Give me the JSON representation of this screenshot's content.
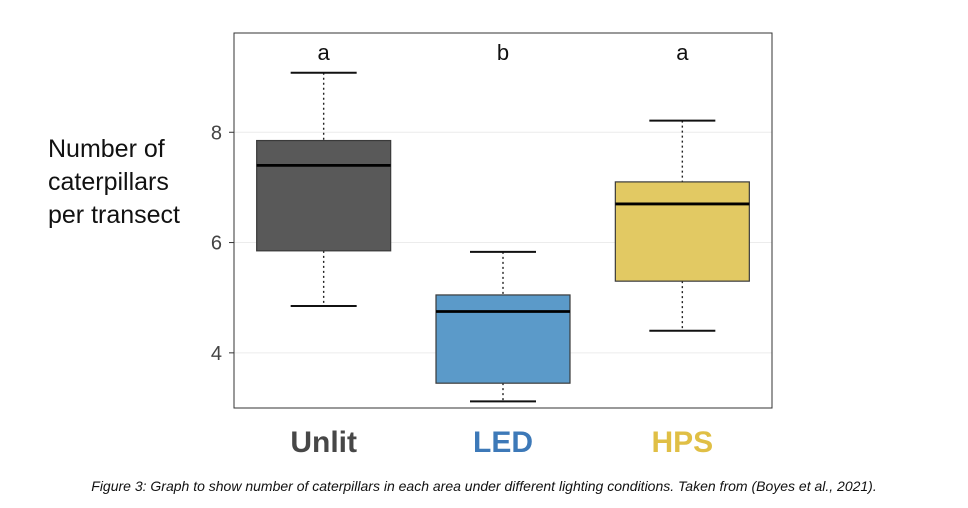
{
  "chart_data": {
    "type": "box",
    "ylabel_lines": [
      "Number of",
      "caterpillars",
      "per transect"
    ],
    "ylim": [
      3.0,
      9.8
    ],
    "yticks": [
      4,
      6,
      8
    ],
    "grid": true,
    "categories": [
      "Unlit",
      "LED",
      "HPS"
    ],
    "boxes": [
      {
        "name": "Unlit",
        "min": 4.85,
        "q1": 5.85,
        "median": 7.4,
        "q3": 7.85,
        "max": 9.08,
        "fill": "#595959",
        "label_color": "#474747",
        "significance": "a"
      },
      {
        "name": "LED",
        "min": 3.12,
        "q1": 3.45,
        "median": 4.75,
        "q3": 5.05,
        "max": 5.83,
        "fill": "#5b9ac9",
        "label_color": "#3d79b8",
        "significance": "b"
      },
      {
        "name": "HPS",
        "min": 4.4,
        "q1": 5.3,
        "median": 6.7,
        "q3": 7.1,
        "max": 8.21,
        "fill": "#e2c963",
        "label_color": "#e0bf45",
        "significance": "a"
      }
    ]
  },
  "caption": "Figure 3: Graph to show number of caterpillars in each area under different lighting conditions. Taken from (Boyes et al., 2021)."
}
